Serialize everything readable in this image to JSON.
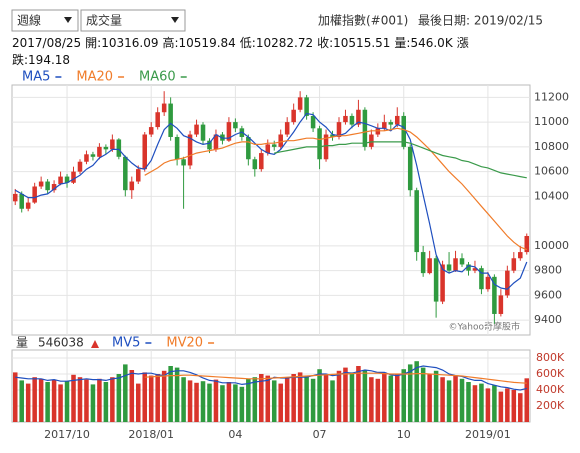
{
  "header": {
    "period_select": "週線",
    "indicator_select": "成交量",
    "title": "加權指數(#001)",
    "last_date": "最後日期: 2019/02/15",
    "info": [
      "2017/08/25",
      "開:10316.09",
      "高:10519.84",
      "低:10282.72",
      "收:10515.51",
      "量:546.0K",
      "漲跌:194.18"
    ]
  },
  "chart_data": [
    {
      "type": "candlestick",
      "up_color": "#d9342b",
      "down_color": "#2f9a3f",
      "grid": true,
      "watermark": "©Yahoo奇摩股市",
      "ylim": [
        9280,
        11300
      ],
      "yticks": [
        9400,
        9600,
        9800,
        10000,
        10400,
        10600,
        10800,
        11000,
        11200
      ],
      "ohlc": [
        [
          10360,
          10460,
          10330,
          10420
        ],
        [
          10420,
          10440,
          10270,
          10300
        ],
        [
          10300,
          10390,
          10280,
          10350
        ],
        [
          10350,
          10510,
          10340,
          10480
        ],
        [
          10480,
          10560,
          10460,
          10520
        ],
        [
          10520,
          10540,
          10420,
          10450
        ],
        [
          10450,
          10530,
          10430,
          10500
        ],
        [
          10500,
          10600,
          10490,
          10560
        ],
        [
          10560,
          10580,
          10470,
          10510
        ],
        [
          10510,
          10640,
          10500,
          10600
        ],
        [
          10600,
          10700,
          10580,
          10680
        ],
        [
          10680,
          10770,
          10660,
          10740
        ],
        [
          10740,
          10760,
          10690,
          10720
        ],
        [
          10720,
          10830,
          10700,
          10800
        ],
        [
          10800,
          10820,
          10740,
          10780
        ],
        [
          10780,
          10900,
          10760,
          10860
        ],
        [
          10860,
          10870,
          10700,
          10720
        ],
        [
          10720,
          10730,
          10400,
          10450
        ],
        [
          10450,
          10560,
          10380,
          10520
        ],
        [
          10520,
          10650,
          10500,
          10620
        ],
        [
          10620,
          10920,
          10600,
          10900
        ],
        [
          10900,
          11000,
          10880,
          10960
        ],
        [
          10960,
          11120,
          10940,
          11080
        ],
        [
          11080,
          11250,
          11050,
          11150
        ],
        [
          11150,
          11200,
          10850,
          10880
        ],
        [
          10880,
          10900,
          10650,
          10700
        ],
        [
          10700,
          10720,
          10300,
          10650
        ],
        [
          10650,
          10930,
          10620,
          10900
        ],
        [
          10900,
          11020,
          10880,
          10980
        ],
        [
          10980,
          11000,
          10820,
          10850
        ],
        [
          10850,
          10870,
          10750,
          10780
        ],
        [
          10780,
          10940,
          10760,
          10900
        ],
        [
          10900,
          10920,
          10820,
          10850
        ],
        [
          10850,
          11040,
          10840,
          11000
        ],
        [
          11000,
          11030,
          10920,
          10950
        ],
        [
          10950,
          10970,
          10850,
          10880
        ],
        [
          10880,
          10900,
          10650,
          10700
        ],
        [
          10700,
          10720,
          10560,
          10620
        ],
        [
          10620,
          10780,
          10600,
          10750
        ],
        [
          10750,
          10860,
          10730,
          10820
        ],
        [
          10820,
          10850,
          10770,
          10800
        ],
        [
          10800,
          10940,
          10780,
          10900
        ],
        [
          10900,
          11040,
          10880,
          11000
        ],
        [
          11000,
          11150,
          10980,
          11100
        ],
        [
          11100,
          11250,
          11080,
          11200
        ],
        [
          11200,
          11220,
          11020,
          11050
        ],
        [
          11050,
          11080,
          10920,
          10950
        ],
        [
          10950,
          10970,
          10620,
          10700
        ],
        [
          10700,
          10940,
          10680,
          10900
        ],
        [
          10900,
          10930,
          10850,
          10880
        ],
        [
          10880,
          11040,
          10860,
          11000
        ],
        [
          11000,
          11100,
          10980,
          11050
        ],
        [
          11050,
          11070,
          10950,
          10980
        ],
        [
          10980,
          11180,
          10960,
          11100
        ],
        [
          11100,
          11120,
          10770,
          10800
        ],
        [
          10800,
          10940,
          10780,
          10900
        ],
        [
          10900,
          10990,
          10880,
          10950
        ],
        [
          10950,
          11060,
          10930,
          11000
        ],
        [
          11000,
          11020,
          10940,
          10980
        ],
        [
          10980,
          11120,
          10960,
          11050
        ],
        [
          11050,
          11080,
          10780,
          10800
        ],
        [
          10800,
          10820,
          10400,
          10450
        ],
        [
          10450,
          10470,
          9880,
          9950
        ],
        [
          9950,
          10000,
          9750,
          9780
        ],
        [
          9780,
          9960,
          9770,
          9900
        ],
        [
          9900,
          9920,
          9420,
          9550
        ],
        [
          9550,
          9880,
          9530,
          9850
        ],
        [
          9850,
          9950,
          9780,
          9800
        ],
        [
          9800,
          9960,
          9790,
          9900
        ],
        [
          9900,
          9940,
          9830,
          9850
        ],
        [
          9850,
          9870,
          9760,
          9800
        ],
        [
          9800,
          9880,
          9780,
          9820
        ],
        [
          9820,
          9840,
          9610,
          9650
        ],
        [
          9650,
          9790,
          9630,
          9750
        ],
        [
          9750,
          9770,
          9370,
          9450
        ],
        [
          9450,
          9650,
          9430,
          9600
        ],
        [
          9600,
          9840,
          9580,
          9800
        ],
        [
          9800,
          9950,
          9780,
          9900
        ],
        [
          9900,
          10000,
          9880,
          9950
        ],
        [
          9950,
          10100,
          9930,
          10080
        ]
      ],
      "series": [
        {
          "name": "MA5",
          "color": "#1f4fbf",
          "values": [
            10450,
            10420,
            10390,
            10390,
            10410,
            10420,
            10460,
            10500,
            10510,
            10540,
            10570,
            10620,
            10650,
            10710,
            10740,
            10780,
            10780,
            10720,
            10670,
            10630,
            10620,
            10690,
            10820,
            10940,
            10990,
            10950,
            10890,
            10870,
            10840,
            10820,
            10830,
            10900,
            10870,
            10870,
            10900,
            10920,
            10880,
            10830,
            10780,
            10750,
            10740,
            10780,
            10850,
            10920,
            11000,
            11070,
            11060,
            11000,
            10960,
            10900,
            10890,
            10910,
            10960,
            11000,
            10990,
            10970,
            10950,
            10950,
            10930,
            10980,
            10960,
            10860,
            10650,
            10410,
            10180,
            9930,
            9810,
            9780,
            9800,
            9790,
            9840,
            9830,
            9780,
            9780,
            9690,
            9660,
            9650,
            9700,
            9740,
            9870
          ]
        },
        {
          "name": "MA20",
          "color": "#f07c2a",
          "values": [
            null,
            null,
            null,
            null,
            null,
            null,
            null,
            null,
            null,
            null,
            null,
            null,
            null,
            null,
            null,
            null,
            null,
            null,
            null,
            null,
            10570,
            10600,
            10630,
            10670,
            10690,
            10700,
            10710,
            10730,
            10750,
            10760,
            10770,
            10780,
            10790,
            10810,
            10830,
            10840,
            10840,
            10820,
            10820,
            10830,
            10830,
            10840,
            10850,
            10850,
            10860,
            10870,
            10870,
            10860,
            10870,
            10880,
            10890,
            10890,
            10900,
            10910,
            10920,
            10930,
            10930,
            10930,
            10940,
            10950,
            10940,
            10920,
            10880,
            10830,
            10780,
            10720,
            10660,
            10600,
            10550,
            10500,
            10440,
            10380,
            10320,
            10260,
            10200,
            10140,
            10080,
            10030,
            9990,
            9970
          ]
        },
        {
          "name": "MA60",
          "color": "#3a9a4a",
          "values": [
            null,
            null,
            null,
            null,
            null,
            null,
            null,
            null,
            null,
            null,
            null,
            null,
            null,
            null,
            null,
            null,
            null,
            null,
            null,
            null,
            null,
            null,
            null,
            null,
            null,
            null,
            null,
            null,
            null,
            null,
            null,
            null,
            null,
            null,
            null,
            null,
            null,
            null,
            null,
            null,
            10750,
            10760,
            10770,
            10780,
            10790,
            10800,
            10800,
            10800,
            10810,
            10810,
            10820,
            10820,
            10830,
            10830,
            10830,
            10840,
            10840,
            10840,
            10840,
            10840,
            10840,
            10830,
            10810,
            10790,
            10770,
            10750,
            10730,
            10720,
            10710,
            10690,
            10680,
            10660,
            10640,
            10630,
            10610,
            10590,
            10580,
            10570,
            10560,
            10550
          ]
        }
      ]
    },
    {
      "type": "bar",
      "label": "量",
      "grid": true,
      "categories": [
        null,
        null,
        null,
        null,
        null,
        null,
        null,
        null,
        "2017/10",
        null,
        null,
        null,
        null,
        null,
        null,
        null,
        null,
        null,
        null,
        null,
        null,
        "2018/01",
        null,
        null,
        null,
        null,
        null,
        null,
        null,
        null,
        null,
        null,
        null,
        null,
        "04",
        null,
        null,
        null,
        null,
        null,
        null,
        null,
        null,
        null,
        null,
        null,
        null,
        "07",
        null,
        null,
        null,
        null,
        null,
        null,
        null,
        null,
        null,
        null,
        null,
        null,
        "10",
        null,
        null,
        null,
        null,
        null,
        null,
        null,
        null,
        null,
        null,
        null,
        null,
        "2019/01",
        null,
        null,
        null,
        null,
        null,
        null
      ],
      "values": [
        620000,
        520000,
        480000,
        560000,
        540000,
        500000,
        530000,
        470000,
        510000,
        590000,
        560000,
        530000,
        470000,
        540000,
        500000,
        560000,
        600000,
        720000,
        650000,
        480000,
        620000,
        580000,
        600000,
        640000,
        700000,
        680000,
        560000,
        520000,
        490000,
        510000,
        480000,
        530000,
        460000,
        500000,
        470000,
        440000,
        540000,
        560000,
        600000,
        580000,
        520000,
        480000,
        560000,
        600000,
        620000,
        580000,
        540000,
        660000,
        600000,
        520000,
        640000,
        680000,
        620000,
        700000,
        650000,
        560000,
        540000,
        620000,
        580000,
        600000,
        660000,
        720000,
        760000,
        680000,
        600000,
        640000,
        560000,
        520000,
        580000,
        540000,
        500000,
        460000,
        480000,
        420000,
        460000,
        380000,
        420000,
        400000,
        360000,
        546038
      ],
      "ylim": [
        0,
        900000
      ],
      "yticks": [
        {
          "value": 200000,
          "label": "200K"
        },
        {
          "value": 400000,
          "label": "400K"
        },
        {
          "value": 600000,
          "label": "600K"
        },
        {
          "value": 800000,
          "label": "800K"
        }
      ],
      "series": [
        {
          "name": "MV5",
          "color": "#1f4fbf",
          "values": [
            560000,
            550000,
            540000,
            540000,
            540000,
            520000,
            530000,
            510000,
            510000,
            520000,
            530000,
            540000,
            530000,
            530000,
            520000,
            540000,
            550000,
            580000,
            610000,
            600000,
            610000,
            610000,
            590000,
            580000,
            630000,
            640000,
            640000,
            620000,
            590000,
            550000,
            520000,
            510000,
            490000,
            490000,
            490000,
            470000,
            480000,
            500000,
            510000,
            520000,
            560000,
            550000,
            550000,
            560000,
            560000,
            560000,
            580000,
            600000,
            600000,
            580000,
            590000,
            620000,
            610000,
            630000,
            650000,
            640000,
            620000,
            620000,
            590000,
            580000,
            600000,
            630000,
            680000,
            700000,
            690000,
            680000,
            650000,
            600000,
            580000,
            570000,
            540000,
            520000,
            520000,
            480000,
            460000,
            440000,
            430000,
            410000,
            400000,
            420000
          ]
        },
        {
          "name": "MV20",
          "color": "#f07c2a",
          "values": [
            null,
            null,
            null,
            null,
            null,
            null,
            null,
            null,
            null,
            null,
            null,
            null,
            null,
            null,
            null,
            null,
            null,
            null,
            null,
            null,
            560000,
            565000,
            570000,
            575000,
            580000,
            580000,
            585000,
            585000,
            580000,
            575000,
            570000,
            565000,
            560000,
            555000,
            550000,
            545000,
            540000,
            540000,
            540000,
            545000,
            550000,
            555000,
            560000,
            565000,
            570000,
            575000,
            580000,
            585000,
            590000,
            595000,
            600000,
            600000,
            605000,
            610000,
            610000,
            610000,
            610000,
            605000,
            600000,
            600000,
            600000,
            600000,
            605000,
            605000,
            600000,
            595000,
            590000,
            585000,
            580000,
            575000,
            565000,
            555000,
            545000,
            535000,
            525000,
            515000,
            505000,
            495000,
            490000,
            485000
          ]
        }
      ]
    }
  ]
}
